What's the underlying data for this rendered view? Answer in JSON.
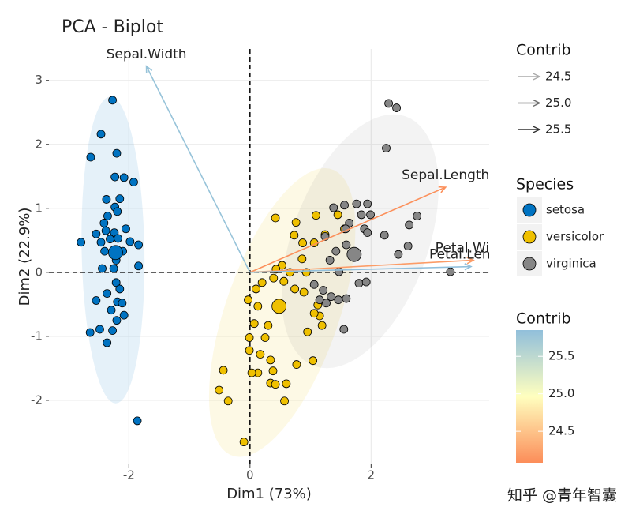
{
  "chart_data": {
    "type": "scatter",
    "title": "PCA - Biplot",
    "x_label": "Dim1 (73%)",
    "y_label": "Dim2 (22.9%)",
    "xlim": [
      -3.32,
      3.95
    ],
    "ylim": [
      -3.0,
      3.49
    ],
    "xticks": [
      -2,
      0,
      2
    ],
    "yticks": [
      -2,
      -1,
      0,
      1,
      2,
      3
    ],
    "grid": true,
    "series": [
      {
        "name": "setosa",
        "color": "#0073C2",
        "mean_x": -2.22,
        "mean_y": 0.31,
        "x": [
          -2.27,
          -2.46,
          -2.63,
          -2.2,
          -2.23,
          -2.08,
          -1.92,
          -2.37,
          -2.15,
          -2.23,
          -2.19,
          -2.35,
          -2.41,
          -2.54,
          -2.38,
          -2.24,
          -2.05,
          -2.79,
          -2.46,
          -2.31,
          -2.18,
          -1.98,
          -1.84,
          -2.4,
          -2.1,
          -2.21,
          -2.44,
          -2.25,
          -1.84,
          -2.21,
          -2.15,
          -2.36,
          -2.54,
          -2.19,
          -2.11,
          -2.29,
          -2.08,
          -2.2,
          -2.48,
          -2.64,
          -2.27,
          -2.36,
          -1.86
        ],
        "y": [
          2.69,
          2.16,
          1.8,
          1.86,
          1.49,
          1.48,
          1.41,
          1.14,
          1.15,
          1.02,
          0.95,
          0.88,
          0.77,
          0.6,
          0.65,
          0.62,
          0.68,
          0.47,
          0.47,
          0.52,
          0.53,
          0.48,
          0.43,
          0.33,
          0.33,
          0.19,
          0.06,
          0.06,
          0.1,
          -0.16,
          -0.26,
          -0.33,
          -0.44,
          -0.46,
          -0.48,
          -0.59,
          -0.67,
          -0.75,
          -0.89,
          -0.94,
          -0.91,
          -1.1,
          -2.32
        ]
      },
      {
        "name": "versicolor",
        "color": "#EFC000",
        "mean_x": 0.48,
        "mean_y": -0.53,
        "x": [
          0.42,
          0.76,
          1.09,
          0.73,
          0.87,
          1.06,
          1.24,
          1.45,
          1.56,
          0.56,
          0.39,
          0.2,
          0.1,
          -0.03,
          0.13,
          0.07,
          0.3,
          0.25,
          -0.01,
          -0.01,
          0.17,
          0.34,
          0.38,
          0.13,
          0.03,
          0.34,
          0.42,
          0.6,
          0.57,
          0.77,
          1.04,
          0.95,
          1.15,
          1.19,
          1.06,
          1.12,
          0.89,
          0.74,
          0.53,
          0.43,
          0.66,
          0.93,
          0.86,
          -0.44,
          -0.51,
          -0.36,
          -0.1
        ],
        "y": [
          0.85,
          0.78,
          0.89,
          0.58,
          0.46,
          0.46,
          0.59,
          0.9,
          0.68,
          -0.14,
          -0.09,
          -0.16,
          -0.26,
          -0.43,
          -0.53,
          -0.8,
          -0.83,
          -1.02,
          -1.02,
          -1.22,
          -1.28,
          -1.37,
          -1.54,
          -1.57,
          -1.57,
          -1.73,
          -1.75,
          -1.74,
          -2.01,
          -1.44,
          -1.38,
          -0.93,
          -0.68,
          -0.83,
          -0.64,
          -0.51,
          -0.31,
          -0.26,
          0.11,
          0.05,
          0.0,
          0.0,
          0.21,
          -1.53,
          -1.84,
          -2.01,
          -2.65
        ]
      },
      {
        "name": "virginica",
        "color": "#868686",
        "mean_x": 1.72,
        "mean_y": 0.28,
        "x": [
          2.29,
          2.42,
          2.25,
          2.76,
          2.63,
          1.56,
          1.76,
          1.94,
          1.99,
          1.84,
          1.38,
          1.89,
          1.94,
          2.22,
          1.64,
          1.58,
          2.45,
          2.61,
          1.59,
          1.42,
          1.24,
          1.32,
          1.47,
          1.8,
          1.92,
          3.31,
          1.21,
          1.34,
          1.15,
          1.26,
          1.46,
          1.59,
          1.55,
          1.06
        ],
        "y": [
          2.64,
          2.57,
          1.94,
          0.88,
          0.74,
          1.05,
          1.07,
          1.07,
          0.9,
          0.9,
          1.01,
          0.68,
          0.62,
          0.58,
          0.77,
          0.68,
          0.28,
          0.41,
          0.43,
          0.33,
          0.56,
          0.19,
          0.01,
          -0.17,
          -0.15,
          0.01,
          -0.28,
          -0.38,
          -0.43,
          -0.48,
          -0.43,
          -0.41,
          -0.89,
          -0.19
        ]
      }
    ],
    "variables": [
      {
        "name": "Sepal.Width",
        "x": -1.71,
        "y": 3.22,
        "contrib": 25.8
      },
      {
        "name": "Sepal.Length",
        "x": 3.23,
        "y": 1.33,
        "contrib": 24.1
      },
      {
        "name": "Petal.Width",
        "x": 3.69,
        "y": 0.19,
        "contrib": 24.2
      },
      {
        "name": "Petal.Length",
        "x": 3.65,
        "y": 0.09,
        "contrib": 25.85
      }
    ],
    "contrib_size_title": "Contrib",
    "contrib_size_ticks": [
      24.5,
      {
        "value": 25,
        "label": "25.0"
      },
      25.5
    ],
    "species_title": "Species",
    "contrib_color_title": "Contrib",
    "contrib_color_lim": [
      24.08,
      25.85
    ],
    "contrib_color_ticks": [
      24.5,
      {
        "value": 25,
        "label": "25.0"
      },
      25.5
    ],
    "contrib_colors": [
      "#FC8D59",
      "#FFFFBF",
      "#91BFDB"
    ],
    "watermark": "知乎 @青年智囊"
  }
}
